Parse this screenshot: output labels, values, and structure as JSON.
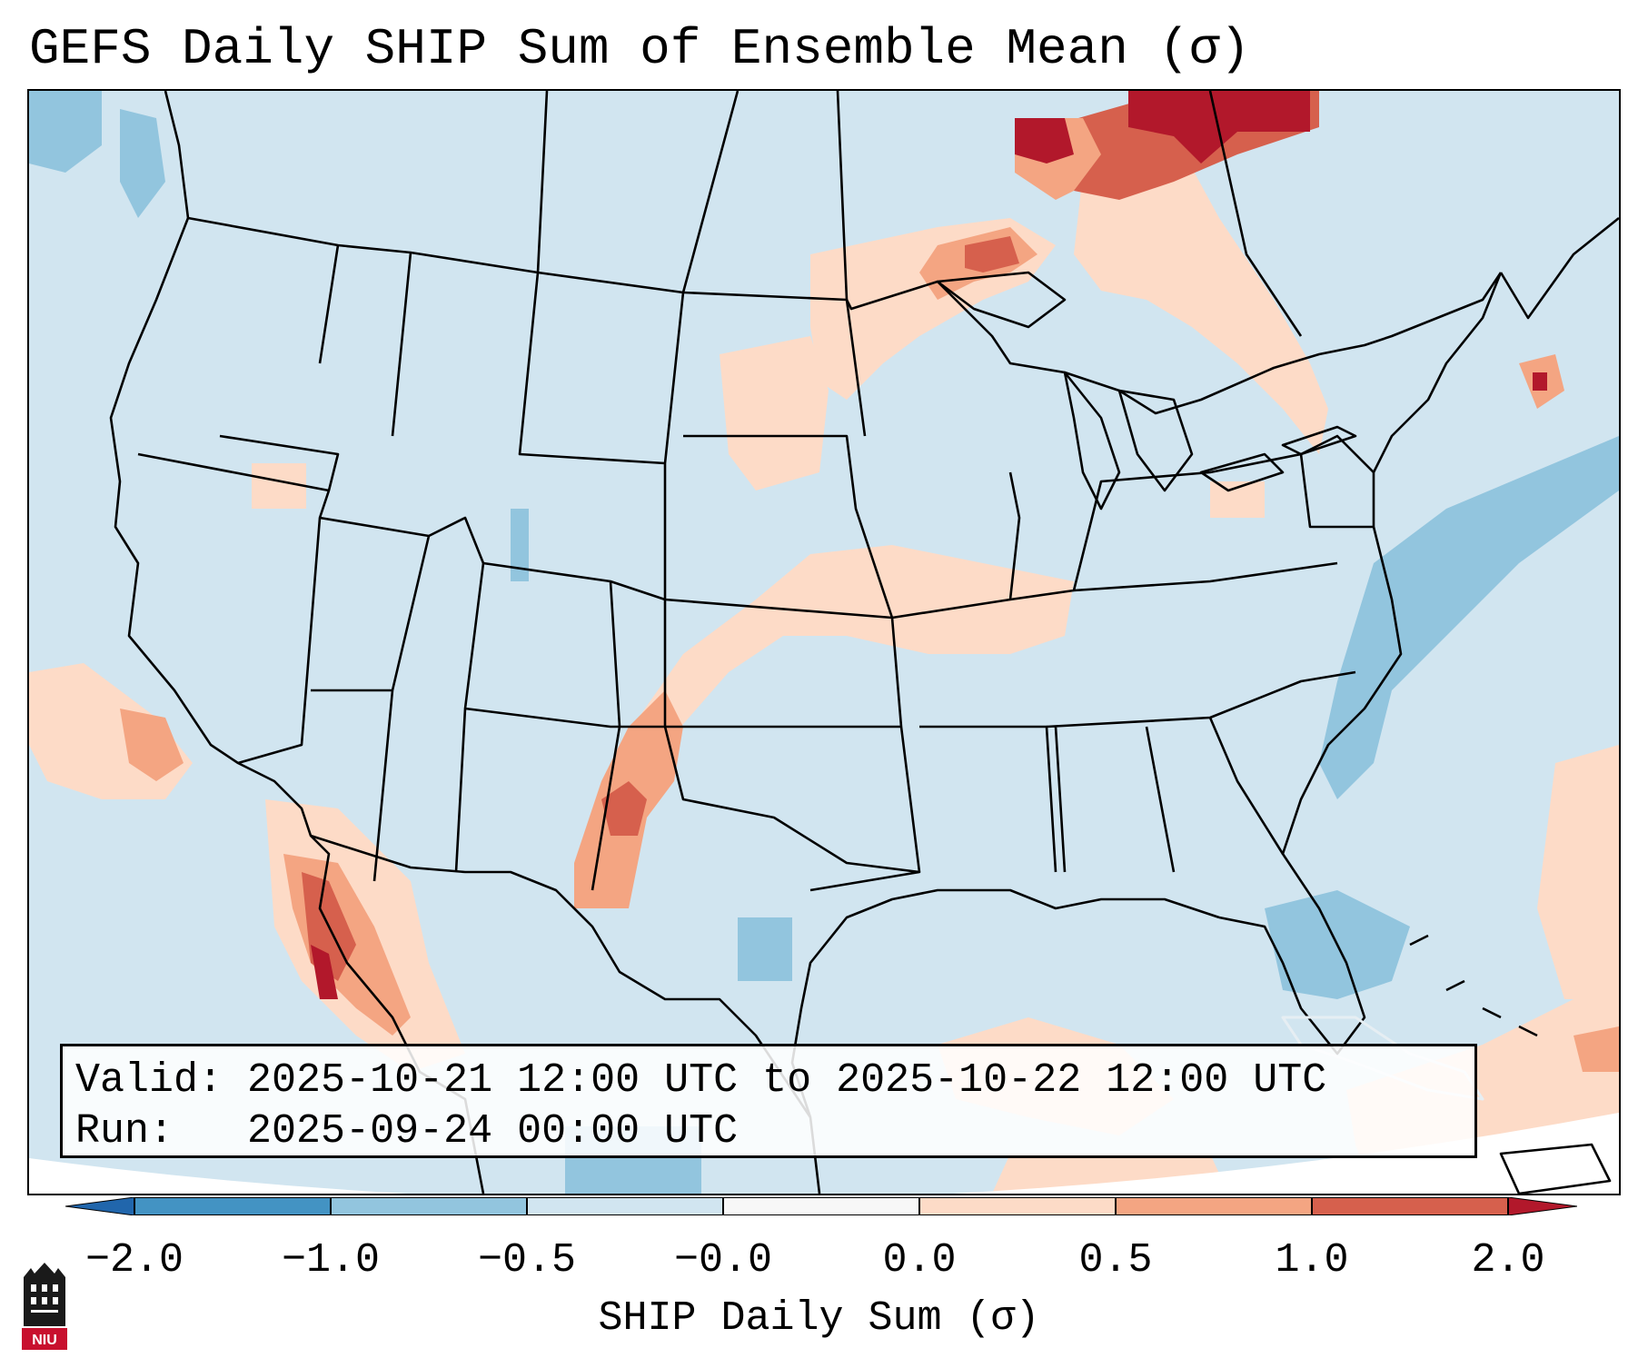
{
  "title": "GEFS Daily SHIP Sum of Ensemble Mean (σ)",
  "info": {
    "valid_label": "Valid:",
    "valid_value": "2025-10-21 12:00 UTC to 2025-10-22 12:00 UTC",
    "run_label": "Run:",
    "run_value": "2025-09-24 00:00 UTC"
  },
  "colorbar": {
    "label": "SHIP Daily Sum (σ)",
    "ticks": [
      "−2.0",
      "−1.0",
      "−0.5",
      "−0.0",
      "0.0",
      "0.5",
      "1.0",
      "2.0"
    ],
    "colors": {
      "below": "#2166ac",
      "neg_2_to_1": "#4393c3",
      "neg_1_to_05": "#92c5de",
      "neg_05_to_0": "#d1e5f0",
      "zero_band": "#f7f7f7",
      "pos_0_to_05": "#fddbc7",
      "pos_05_to_1": "#f4a582",
      "pos_1_to_2": "#d6604d",
      "above": "#b2182b"
    }
  },
  "map": {
    "projection": "Lambert conformal (CONUS)",
    "background_color": "#d1e5f0",
    "boundary_color": "#000000"
  },
  "logo": {
    "text": "NIU",
    "icon": "niu-logo-icon"
  }
}
